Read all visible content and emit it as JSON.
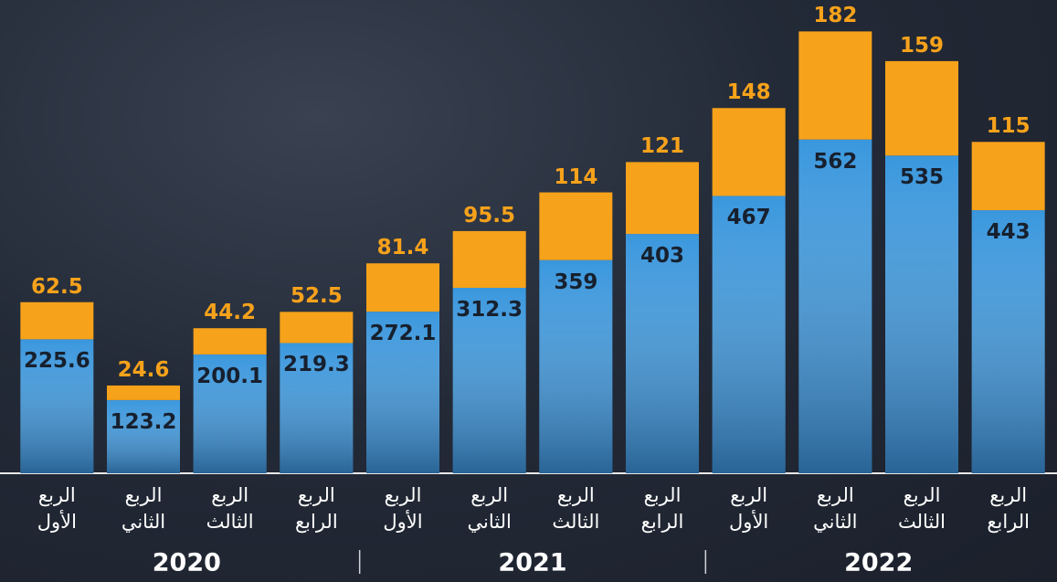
{
  "chart_data": {
    "type": "stacked_bar",
    "categories": [
      "الربع الأول",
      "الربع الثاني",
      "الربع الثالث",
      "الربع الرابع",
      "الربع الأول",
      "الربع الثاني",
      "الربع الثالث",
      "الربع الرابع",
      "الربع الأول",
      "الربع الثاني",
      "الربع الثالث",
      "الربع الرابع"
    ],
    "groups": [
      "2020",
      "2021",
      "2022"
    ],
    "series": [
      {
        "color": "#3a97dd",
        "values": [
          225.6,
          123.2,
          200.1,
          219.3,
          272.1,
          312.3,
          359,
          403,
          467,
          562,
          535,
          443
        ]
      },
      {
        "color": "#f7a21b",
        "values": [
          62.5,
          24.6,
          44.2,
          52.5,
          81.4,
          95.5,
          114,
          121,
          148,
          182,
          159,
          115
        ]
      }
    ],
    "ylim": [
      0,
      760
    ]
  }
}
